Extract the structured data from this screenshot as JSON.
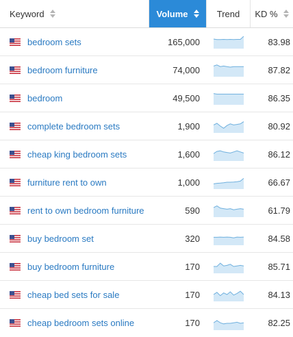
{
  "header": {
    "keyword": "Keyword",
    "volume": "Volume",
    "trend": "Trend",
    "kd": "KD %"
  },
  "colors": {
    "accent": "#2b8ad8",
    "link": "#2a7ac2",
    "trend_fill": "#d3e8f7",
    "trend_line": "#6fb0de"
  },
  "rows": [
    {
      "keyword": "bedroom sets",
      "volume": "165,000",
      "kd": "83.98",
      "trend": [
        0.75,
        0.7,
        0.7,
        0.72,
        0.7,
        0.72,
        0.7,
        0.72,
        0.72,
        1.0
      ]
    },
    {
      "keyword": "bedroom furniture",
      "volume": "74,000",
      "kd": "87.82",
      "trend": [
        0.85,
        0.95,
        0.8,
        0.85,
        0.8,
        0.75,
        0.8,
        0.8,
        0.8,
        0.8
      ]
    },
    {
      "keyword": "bedroom",
      "volume": "49,500",
      "kd": "86.35",
      "trend": [
        0.9,
        0.85,
        0.85,
        0.85,
        0.85,
        0.85,
        0.85,
        0.85,
        0.85,
        0.85
      ]
    },
    {
      "keyword": "complete bedroom sets",
      "volume": "1,900",
      "kd": "80.92",
      "trend": [
        0.6,
        0.75,
        0.5,
        0.3,
        0.55,
        0.7,
        0.6,
        0.65,
        0.7,
        0.9
      ]
    },
    {
      "keyword": "cheap king bedroom sets",
      "volume": "1,600",
      "kd": "86.12",
      "trend": [
        0.55,
        0.75,
        0.8,
        0.7,
        0.65,
        0.6,
        0.7,
        0.8,
        0.7,
        0.6
      ]
    },
    {
      "keyword": "furniture rent to own",
      "volume": "1,000",
      "kd": "66.67",
      "trend": [
        0.35,
        0.4,
        0.42,
        0.45,
        0.5,
        0.5,
        0.52,
        0.55,
        0.6,
        0.85
      ]
    },
    {
      "keyword": "rent to own bedroom furniture",
      "volume": "590",
      "kd": "61.79",
      "trend": [
        0.75,
        0.9,
        0.7,
        0.65,
        0.6,
        0.65,
        0.55,
        0.6,
        0.65,
        0.6
      ]
    },
    {
      "keyword": "buy bedroom set",
      "volume": "320",
      "kd": "84.58",
      "trend": [
        0.6,
        0.6,
        0.62,
        0.6,
        0.62,
        0.6,
        0.55,
        0.62,
        0.6,
        0.62
      ]
    },
    {
      "keyword": "buy bedroom furniture",
      "volume": "170",
      "kd": "85.71",
      "trend": [
        0.5,
        0.5,
        0.8,
        0.55,
        0.6,
        0.7,
        0.5,
        0.55,
        0.6,
        0.55
      ]
    },
    {
      "keyword": "cheap bed sets for sale",
      "volume": "170",
      "kd": "84.13",
      "trend": [
        0.5,
        0.7,
        0.4,
        0.65,
        0.5,
        0.75,
        0.45,
        0.6,
        0.8,
        0.5
      ]
    },
    {
      "keyword": "cheap bedroom sets online",
      "volume": "170",
      "kd": "82.25",
      "trend": [
        0.55,
        0.75,
        0.55,
        0.45,
        0.5,
        0.5,
        0.55,
        0.6,
        0.5,
        0.55
      ]
    }
  ]
}
